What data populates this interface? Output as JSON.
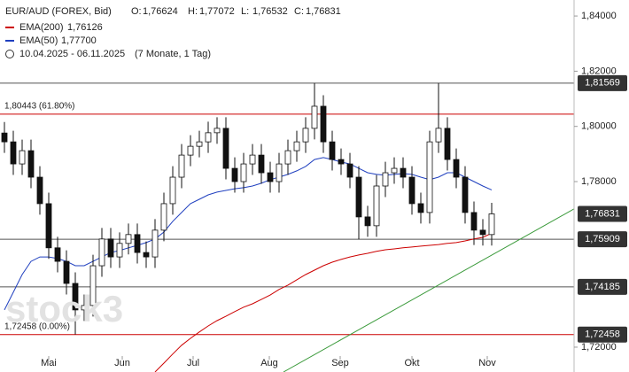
{
  "header": {
    "symbol": "EUR/AUD (FOREX, Bid)",
    "ohlc": [
      {
        "key": "O:",
        "value": "1,76624"
      },
      {
        "key": "H:",
        "value": "1,77072"
      },
      {
        "key": "L:",
        "value": "1,76532"
      },
      {
        "key": "C:",
        "value": "1,76831"
      }
    ],
    "range": "10.04.2025 - 06.11.2025",
    "span": "(7 Monate, 1 Tag)",
    "watermark": "stock3"
  },
  "chart_data": {
    "type": "candlestick",
    "open": [
      1.7976,
      1.7944,
      1.7864,
      1.7912,
      1.7816,
      1.772,
      1.756,
      1.7511,
      1.7431,
      1.7335,
      1.7351,
      1.7495,
      1.7592,
      1.7527,
      1.7576,
      1.7608,
      1.7543,
      1.7527,
      1.7624,
      1.772,
      1.7816,
      1.7896,
      1.7928,
      1.7944,
      1.7977,
      1.7993,
      1.7848,
      1.78,
      1.7864,
      1.7896,
      1.7832,
      1.78,
      1.7864,
      1.7912,
      1.7944,
      1.7993,
      1.8073,
      1.7944,
      1.788,
      1.7864,
      1.7816,
      1.7672,
      1.764,
      1.7784,
      1.7832,
      1.7848,
      1.7816,
      1.772,
      1.7688,
      1.7944,
      1.7993,
      1.788,
      1.7816,
      1.7688,
      1.7624,
      1.7608
    ],
    "high": [
      1.8016,
      1.7984,
      1.7952,
      1.7952,
      1.7856,
      1.776,
      1.76,
      1.7551,
      1.7471,
      1.7391,
      1.7535,
      1.7632,
      1.7632,
      1.7616,
      1.7648,
      1.7648,
      1.7583,
      1.7664,
      1.776,
      1.7856,
      1.7936,
      1.7968,
      1.7984,
      1.8017,
      1.8033,
      1.8033,
      1.7888,
      1.7904,
      1.7936,
      1.7936,
      1.7872,
      1.7904,
      1.7952,
      1.7984,
      1.8033,
      1.8157,
      1.8113,
      1.7984,
      1.792,
      1.7904,
      1.7856,
      1.7712,
      1.7824,
      1.7872,
      1.7888,
      1.7888,
      1.7856,
      1.776,
      1.7984,
      1.8157,
      1.8033,
      1.792,
      1.7856,
      1.7728,
      1.7664,
      1.7723
    ],
    "low": [
      1.7904,
      1.7824,
      1.7824,
      1.7776,
      1.768,
      1.752,
      1.7471,
      1.7391,
      1.7246,
      1.7295,
      1.7311,
      1.7455,
      1.7487,
      1.7487,
      1.7536,
      1.7503,
      1.7487,
      1.7487,
      1.7584,
      1.768,
      1.7776,
      1.7856,
      1.7888,
      1.7904,
      1.7937,
      1.7808,
      1.776,
      1.776,
      1.7824,
      1.7792,
      1.776,
      1.776,
      1.7824,
      1.7872,
      1.7904,
      1.7953,
      1.7904,
      1.784,
      1.7824,
      1.7776,
      1.7591,
      1.76,
      1.76,
      1.7744,
      1.7792,
      1.7776,
      1.768,
      1.7648,
      1.7648,
      1.7904,
      1.784,
      1.7776,
      1.7648,
      1.757,
      1.7568,
      1.7568
    ],
    "close": [
      1.7944,
      1.7864,
      1.7912,
      1.7816,
      1.772,
      1.756,
      1.7511,
      1.7431,
      1.7335,
      1.7351,
      1.7495,
      1.7592,
      1.7527,
      1.7576,
      1.7608,
      1.7543,
      1.7527,
      1.7624,
      1.772,
      1.7816,
      1.7896,
      1.7928,
      1.7944,
      1.7977,
      1.7993,
      1.7848,
      1.78,
      1.7864,
      1.7896,
      1.7832,
      1.78,
      1.7864,
      1.7912,
      1.7944,
      1.7993,
      1.8073,
      1.7944,
      1.788,
      1.7864,
      1.7816,
      1.7672,
      1.764,
      1.7784,
      1.7832,
      1.7848,
      1.7816,
      1.772,
      1.7688,
      1.7944,
      1.7993,
      1.788,
      1.7816,
      1.7688,
      1.7624,
      1.7608,
      1.7683
    ],
    "series": [
      {
        "name": "EMA(200)",
        "legend_value": "1,76126",
        "color": "#cc0000",
        "values": [
          null,
          null,
          null,
          null,
          null,
          null,
          null,
          null,
          null,
          null,
          null,
          null,
          null,
          null,
          null,
          null,
          null,
          1.711,
          1.7142,
          1.7175,
          1.7207,
          1.7232,
          1.7255,
          1.7277,
          1.7296,
          1.7312,
          1.7329,
          1.7345,
          1.7357,
          1.7373,
          1.7389,
          1.7409,
          1.7425,
          1.7444,
          1.7463,
          1.7479,
          1.7495,
          1.7508,
          1.7518,
          1.7527,
          1.7534,
          1.754,
          1.7547,
          1.7553,
          1.7556,
          1.756,
          1.7563,
          1.7566,
          1.7569,
          1.7572,
          1.7576,
          1.7579,
          1.7585,
          1.7592,
          1.7598,
          1.7613
        ]
      },
      {
        "name": "EMA(50)",
        "legend_value": "1,77700",
        "color": "#1f3fbf",
        "values": [
          1.7335,
          1.7399,
          1.7463,
          1.7511,
          1.7527,
          1.7527,
          1.7521,
          1.7511,
          1.7495,
          1.7495,
          1.7511,
          1.7527,
          1.7543,
          1.755,
          1.756,
          1.7569,
          1.7579,
          1.7592,
          1.7617,
          1.7656,
          1.7688,
          1.772,
          1.7736,
          1.7752,
          1.7762,
          1.7768,
          1.7774,
          1.7778,
          1.7784,
          1.7794,
          1.7807,
          1.7816,
          1.7826,
          1.7839,
          1.7855,
          1.788,
          1.7887,
          1.788,
          1.7871,
          1.7864,
          1.7848,
          1.7832,
          1.7826,
          1.7823,
          1.7826,
          1.7829,
          1.7826,
          1.7816,
          1.7807,
          1.7816,
          1.7832,
          1.7832,
          1.7816,
          1.78,
          1.7784,
          1.777
        ]
      }
    ],
    "trend_line": {
      "color": "#3a9a3a",
      "x": [
        31.5,
        64.3
      ],
      "y": [
        1.711,
        1.7701
      ]
    },
    "levels": [
      {
        "value": 1.81569,
        "label": "1,81569",
        "color": "#555555"
      },
      {
        "value": 1.80443,
        "note": "1,80443 (61.80%)",
        "color": "#cc0000"
      },
      {
        "value": 1.76831,
        "label": "1,76831"
      },
      {
        "value": 1.75909,
        "label": "1,75909",
        "color": "#555555"
      },
      {
        "value": 1.74185,
        "label": "1,74185",
        "color": "#555555"
      },
      {
        "value": 1.72458,
        "label": "1,72458",
        "note": "1,72458 (0.00%)",
        "color": "#cc0000"
      }
    ],
    "xlim": [
      -0.5,
      64.3
    ],
    "xticks": [
      {
        "value": 5,
        "label": "Mai"
      },
      {
        "value": 13.3,
        "label": "Jun"
      },
      {
        "value": 21.3,
        "label": "Jul"
      },
      {
        "value": 29.9,
        "label": "Aug"
      },
      {
        "value": 37.9,
        "label": "Sep"
      },
      {
        "value": 46,
        "label": "Okt"
      },
      {
        "value": 54.5,
        "label": "Nov"
      }
    ],
    "ylim": [
      1.711,
      1.8458
    ],
    "yticks": [
      {
        "value": 1.84,
        "label": "1,84000"
      },
      {
        "value": 1.82,
        "label": "1,82000"
      },
      {
        "value": 1.8,
        "label": "1,80000"
      },
      {
        "value": 1.78,
        "label": "1,78000"
      },
      {
        "value": 1.72,
        "label": "1,72000"
      }
    ]
  }
}
